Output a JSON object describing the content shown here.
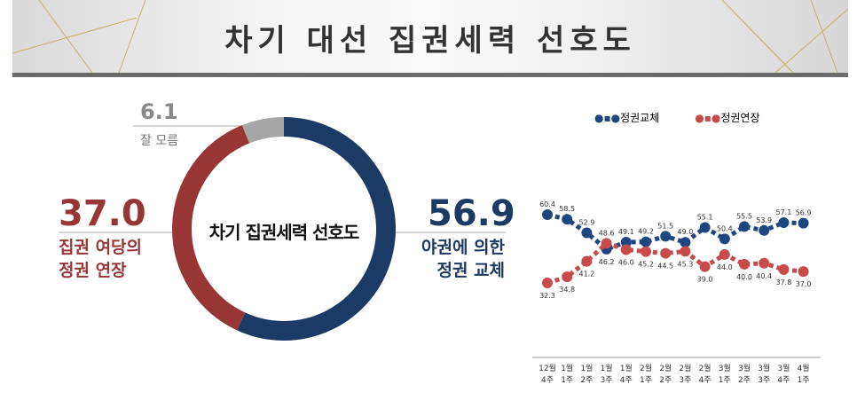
{
  "title": "차기 대선 집권세력 선호도",
  "donut": {
    "center_label": "차기 집권세력 선호도",
    "slices": [
      {
        "value": 56.9,
        "value_label": "56.9",
        "label_lines": [
          "야권에 의한",
          "정권 교체"
        ],
        "color": "#1b3a64"
      },
      {
        "value": 37.0,
        "value_label": "37.0",
        "label_lines": [
          "집권 여당의",
          "정권 연장"
        ],
        "color": "#973634"
      },
      {
        "value": 6.1,
        "value_label": "6.1",
        "label_lines": [
          "잘 모름"
        ],
        "color": "#a6a6a6"
      }
    ]
  },
  "chart_data": {
    "type": "line",
    "categories": [
      "12월 4주",
      "1월 1주",
      "1월 2주",
      "1월 3주",
      "1월 4주",
      "2월 1주",
      "2월 2주",
      "2월 3주",
      "2월 4주",
      "3월 1주",
      "3월 2주",
      "3월 3주",
      "3월 4주",
      "4월 1주"
    ],
    "series": [
      {
        "name": "정권교체",
        "color": "#1f477f",
        "values": [
          60.4,
          58.5,
          52.9,
          46.2,
          49.1,
          49.2,
          51.5,
          49.0,
          55.1,
          50.4,
          55.5,
          53.9,
          57.1,
          56.9
        ]
      },
      {
        "name": "정권연장",
        "color": "#c84a4a",
        "values": [
          32.3,
          34.8,
          41.2,
          48.6,
          46.0,
          45.2,
          44.5,
          45.3,
          39.0,
          44.0,
          40.0,
          40.4,
          37.8,
          37.0
        ]
      }
    ],
    "legend": "top"
  }
}
